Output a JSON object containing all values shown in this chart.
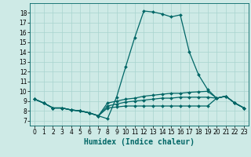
{
  "title": "",
  "xlabel": "Humidex (Indice chaleur)",
  "ylabel": "",
  "background_color": "#ceeae6",
  "grid_color": "#a8d4ce",
  "line_color": "#006666",
  "xlim": [
    -0.5,
    23.5
  ],
  "ylim": [
    6.5,
    19.0
  ],
  "xticks": [
    0,
    1,
    2,
    3,
    4,
    5,
    6,
    7,
    8,
    9,
    10,
    11,
    12,
    13,
    14,
    15,
    16,
    17,
    18,
    19,
    20,
    21,
    22,
    23
  ],
  "yticks": [
    7,
    8,
    9,
    10,
    11,
    12,
    13,
    14,
    15,
    16,
    17,
    18
  ],
  "series": [
    [
      9.2,
      8.8,
      8.3,
      8.3,
      8.1,
      8.0,
      7.8,
      7.5,
      7.2,
      9.4,
      12.5,
      15.5,
      18.2,
      18.1,
      17.9,
      17.6,
      17.8,
      14.0,
      11.7,
      10.2,
      9.3,
      9.5,
      8.8,
      8.3
    ],
    [
      9.2,
      8.8,
      8.3,
      8.3,
      8.1,
      8.0,
      7.8,
      7.5,
      8.8,
      9.0,
      9.2,
      9.3,
      9.5,
      9.6,
      9.7,
      9.8,
      9.8,
      9.9,
      9.95,
      10.0,
      9.3,
      9.5,
      8.8,
      8.3
    ],
    [
      9.2,
      8.8,
      8.3,
      8.3,
      8.1,
      8.0,
      7.8,
      7.5,
      8.5,
      8.7,
      8.9,
      9.0,
      9.1,
      9.2,
      9.3,
      9.3,
      9.4,
      9.4,
      9.4,
      9.4,
      9.3,
      9.5,
      8.8,
      8.3
    ],
    [
      9.2,
      8.8,
      8.3,
      8.3,
      8.1,
      8.0,
      7.8,
      7.5,
      8.3,
      8.4,
      8.5,
      8.5,
      8.5,
      8.5,
      8.5,
      8.5,
      8.5,
      8.5,
      8.5,
      8.5,
      9.3,
      9.5,
      8.8,
      8.3
    ]
  ],
  "xlabel_fontsize": 7,
  "tick_fontsize": 5.5,
  "marker_size": 2.0,
  "line_width": 0.9
}
